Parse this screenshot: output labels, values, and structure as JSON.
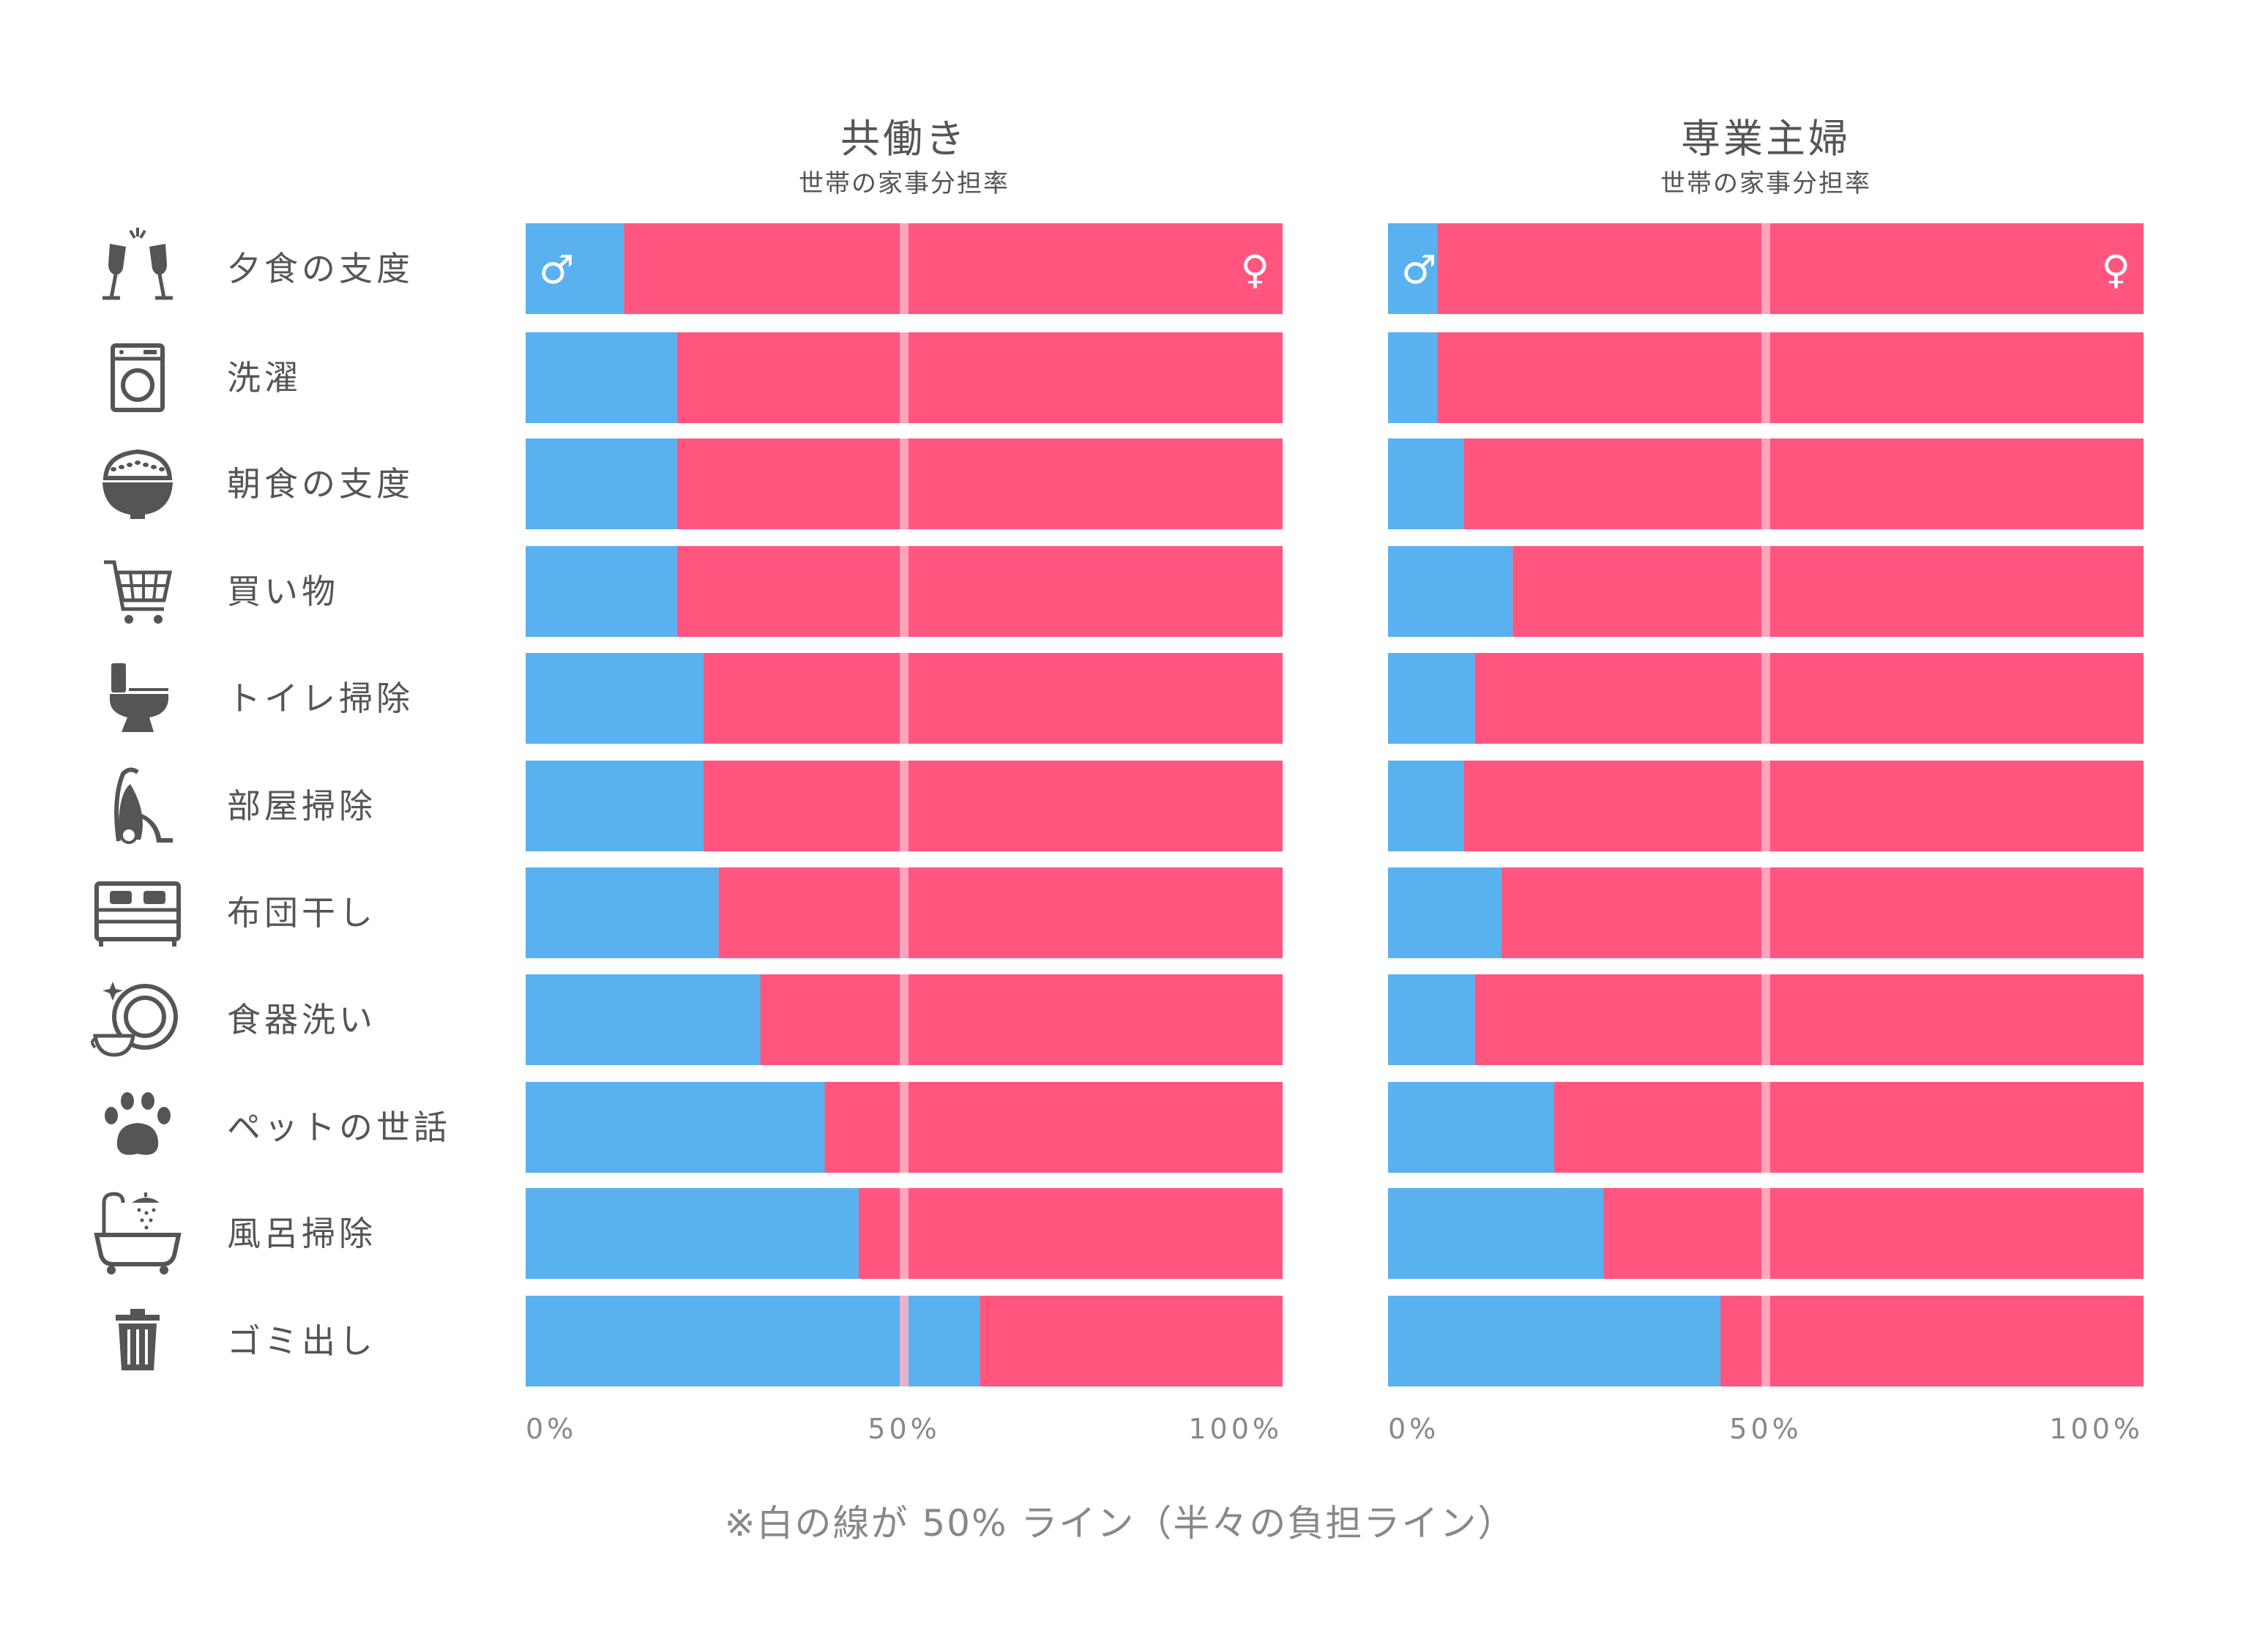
{
  "tasks": [
    "夕食の支度",
    "洗濯",
    "朝食の支度",
    "買い物",
    "トイレ掃除",
    "部屋掃除",
    "布団干し",
    "食器洗い",
    "ペットの世話",
    "風呂掃除",
    "ゴミ出し"
  ],
  "icons": [
    "champagne-glasses-icon",
    "washing-machine-icon",
    "rice-bowl-icon",
    "shopping-cart-icon",
    "toilet-icon",
    "vacuum-cleaner-icon",
    "bed-icon",
    "dish-washing-icon",
    "paw-icon",
    "bathtub-icon",
    "trash-can-icon"
  ],
  "male_symbol": "♂",
  "female_symbol": "♀",
  "colors": {
    "male": "#5AB1F0",
    "female": "#FF557F",
    "midline": "#FFB3C8",
    "text": "#555555",
    "icon": "#555555",
    "axis_text": "#888888"
  },
  "footnote": "※白の線が 50% ライン（半々の負担ライン）",
  "chart_data": [
    {
      "type": "bar",
      "stacked": true,
      "orientation": "horizontal",
      "title": "共働き",
      "subtitle": "世帯の家事分担率",
      "categories": [
        "夕食の支度",
        "洗濯",
        "朝食の支度",
        "買い物",
        "トイレ掃除",
        "部屋掃除",
        "布団干し",
        "食器洗い",
        "ペットの世話",
        "風呂掃除",
        "ゴミ出し"
      ],
      "series": [
        {
          "name": "♂",
          "values": [
            13,
            20,
            20,
            20,
            23.5,
            23.5,
            25.5,
            31,
            39.5,
            44,
            60
          ]
        },
        {
          "name": "♀",
          "values": [
            87,
            80,
            80,
            80,
            76.5,
            76.5,
            74.5,
            69,
            60.5,
            56,
            40
          ]
        }
      ],
      "xlim": [
        0,
        100
      ],
      "ticks": [
        "0%",
        "50%",
        "100%"
      ],
      "reference_line": 50
    },
    {
      "type": "bar",
      "stacked": true,
      "orientation": "horizontal",
      "title": "専業主婦",
      "subtitle": "世帯の家事分担率",
      "categories": [
        "夕食の支度",
        "洗濯",
        "朝食の支度",
        "買い物",
        "トイレ掃除",
        "部屋掃除",
        "布団干し",
        "食器洗い",
        "ペットの世話",
        "風呂掃除",
        "ゴミ出し"
      ],
      "series": [
        {
          "name": "♂",
          "values": [
            6.5,
            6.5,
            10,
            16.5,
            11.5,
            10,
            15,
            11.5,
            22,
            28.5,
            44
          ]
        },
        {
          "name": "♀",
          "values": [
            93.5,
            93.5,
            90,
            83.5,
            88.5,
            90,
            85,
            88.5,
            78,
            71.5,
            56
          ]
        }
      ],
      "xlim": [
        0,
        100
      ],
      "ticks": [
        "0%",
        "50%",
        "100%"
      ],
      "reference_line": 50
    }
  ]
}
